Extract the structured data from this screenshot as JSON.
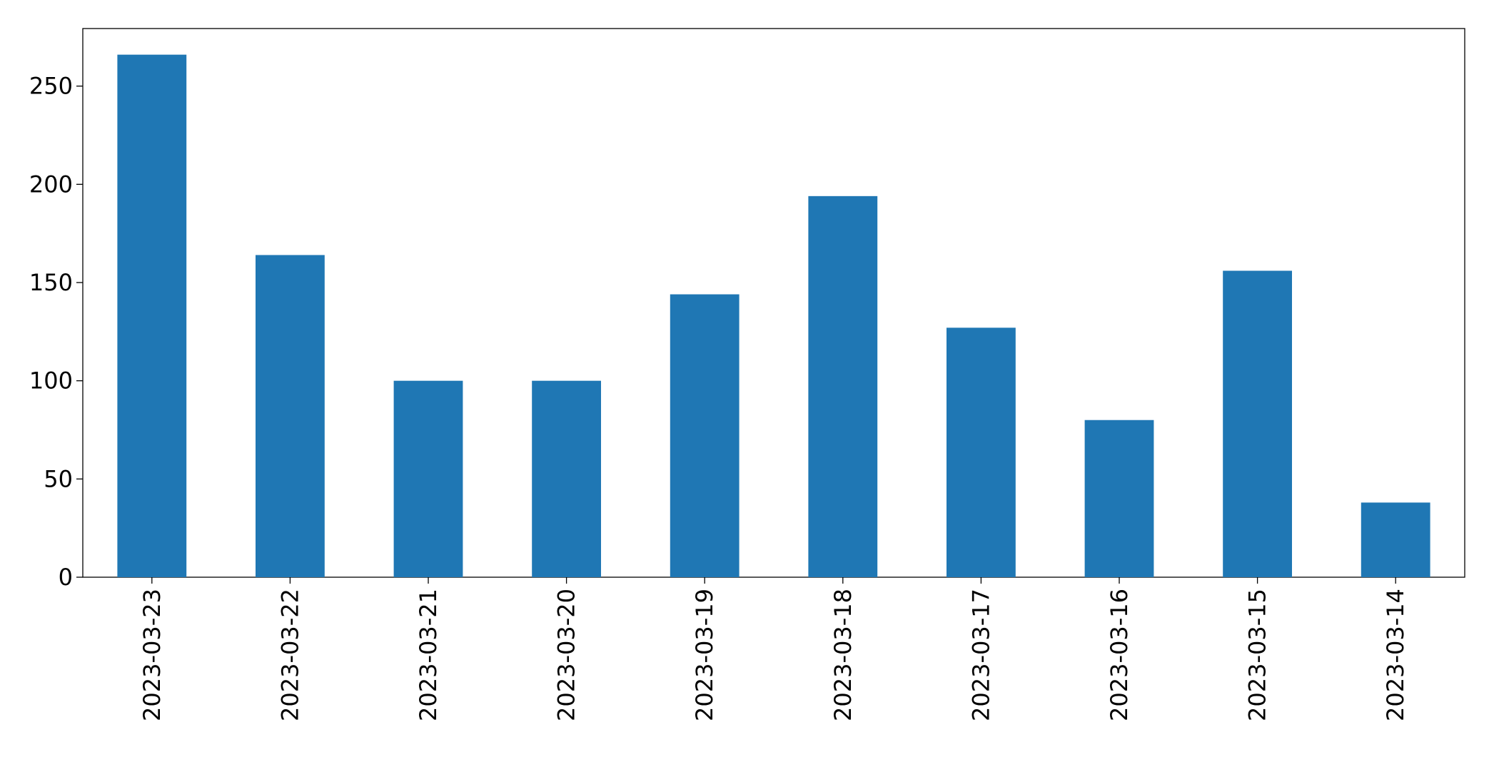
{
  "chart_data": {
    "type": "bar",
    "categories": [
      "2023-03-23",
      "2023-03-22",
      "2023-03-21",
      "2023-03-20",
      "2023-03-19",
      "2023-03-18",
      "2023-03-17",
      "2023-03-16",
      "2023-03-15",
      "2023-03-14"
    ],
    "values": [
      266,
      164,
      100,
      100,
      144,
      194,
      127,
      80,
      156,
      38
    ],
    "color": "#1f77b4",
    "ylim": [
      0,
      279.3
    ],
    "yticks": [
      0,
      50,
      100,
      150,
      200,
      250
    ],
    "grid": false
  }
}
